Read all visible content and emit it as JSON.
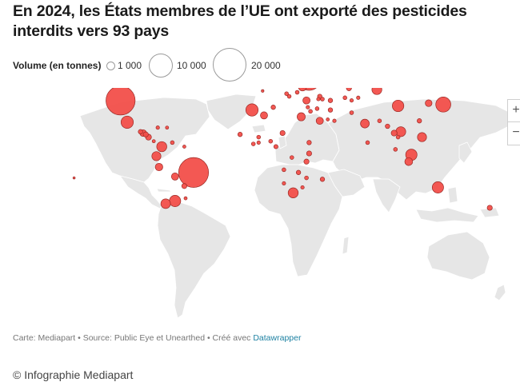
{
  "title": "En 2024, les États membres de l’UE ont exporté des pesticides interdits vers 93 pays",
  "legend": {
    "label": "Volume (en tonnes)",
    "items": [
      {
        "value": "1 000",
        "tonnes": 1000
      },
      {
        "value": "10 000",
        "tonnes": 10000
      },
      {
        "value": "20 000",
        "tonnes": 20000
      }
    ]
  },
  "colors": {
    "bubble_fill": "#f24f4a",
    "bubble_stroke": "#9a2a26",
    "land": "#e6e6e6",
    "borders": "#ffffff",
    "link": "#1d81a2"
  },
  "map_controls": {
    "zoom_in": "+",
    "zoom_out": "−"
  },
  "bubbles": [
    {
      "lon": -105,
      "lat": 39,
      "tonnes": 16500
    },
    {
      "lon": -98,
      "lat": 57,
      "tonnes": 7500
    },
    {
      "lon": -100,
      "lat": 23,
      "tonnes": 3000
    },
    {
      "lon": -88,
      "lat": 15,
      "tonnes": 900
    },
    {
      "lon": -86,
      "lat": 14,
      "tonnes": 500
    },
    {
      "lon": -84,
      "lat": 12,
      "tonnes": 700
    },
    {
      "lon": -90,
      "lat": 16,
      "tonnes": 400
    },
    {
      "lon": -77,
      "lat": 19,
      "tonnes": 250
    },
    {
      "lon": -70,
      "lat": 19,
      "tonnes": 200
    },
    {
      "lon": -80,
      "lat": 9,
      "tonnes": 200
    },
    {
      "lon": -74,
      "lat": 5,
      "tonnes": 2000
    },
    {
      "lon": -66,
      "lat": 8,
      "tonnes": 300
    },
    {
      "lon": -78,
      "lat": -2,
      "tonnes": 1600
    },
    {
      "lon": -76,
      "lat": -10,
      "tonnes": 1100
    },
    {
      "lon": -64,
      "lat": -17,
      "tonnes": 1000
    },
    {
      "lon": -50,
      "lat": -14,
      "tonnes": 17500
    },
    {
      "lon": -57,
      "lat": -24,
      "tonnes": 500
    },
    {
      "lon": -64,
      "lat": -35,
      "tonnes": 2500
    },
    {
      "lon": -71,
      "lat": -37,
      "tonnes": 1800
    },
    {
      "lon": -56,
      "lat": -33,
      "tonnes": 200
    },
    {
      "lon": -57,
      "lat": 5,
      "tonnes": 200
    },
    {
      "lon": -140,
      "lat": -18,
      "tonnes": 100
    },
    {
      "lon": -6,
      "lat": 32,
      "tonnes": 3000
    },
    {
      "lon": 3,
      "lat": 28,
      "tonnes": 1000
    },
    {
      "lon": 10,
      "lat": 34,
      "tonnes": 400
    },
    {
      "lon": 31,
      "lat": 27,
      "tonnes": 1300
    },
    {
      "lon": 17,
      "lat": 15,
      "tonnes": 500
    },
    {
      "lon": -15,
      "lat": 14,
      "tonnes": 400
    },
    {
      "lon": -1,
      "lat": 12,
      "tonnes": 300
    },
    {
      "lon": 8,
      "lat": 9,
      "tonnes": 300
    },
    {
      "lon": -5,
      "lat": 7,
      "tonnes": 300
    },
    {
      "lon": -1,
      "lat": 8,
      "tonnes": 250
    },
    {
      "lon": 12,
      "lat": 5,
      "tonnes": 350
    },
    {
      "lon": 37,
      "lat": 8,
      "tonnes": 400
    },
    {
      "lon": 37,
      "lat": 0,
      "tonnes": 500
    },
    {
      "lon": 35,
      "lat": -6,
      "tonnes": 500
    },
    {
      "lon": 24,
      "lat": -3,
      "tonnes": 300
    },
    {
      "lon": 18,
      "lat": -12,
      "tonnes": 300
    },
    {
      "lon": 29,
      "lat": -14,
      "tonnes": 400
    },
    {
      "lon": 35,
      "lat": -18,
      "tonnes": 300
    },
    {
      "lon": 47,
      "lat": -19,
      "tonnes": 400
    },
    {
      "lon": 25,
      "lat": -29,
      "tonnes": 2000
    },
    {
      "lon": 18,
      "lat": -22,
      "tonnes": 250
    },
    {
      "lon": 32,
      "lat": -25,
      "tonnes": 250
    },
    {
      "lon": -18,
      "lat": 65,
      "tonnes": 200
    },
    {
      "lon": -2,
      "lat": 54,
      "tonnes": 1400
    },
    {
      "lon": 2,
      "lat": 46,
      "tonnes": 150
    },
    {
      "lon": 9,
      "lat": 61,
      "tonnes": 900
    },
    {
      "lon": 37,
      "lat": 55,
      "tonnes": 10500
    },
    {
      "lon": 32,
      "lat": 49,
      "tonnes": 1300
    },
    {
      "lon": 28,
      "lat": 45,
      "tonnes": 300
    },
    {
      "lon": 22,
      "lat": 42,
      "tonnes": 300
    },
    {
      "lon": 20,
      "lat": 44,
      "tonnes": 300
    },
    {
      "lon": 26,
      "lat": 53,
      "tonnes": 300
    },
    {
      "lon": 35,
      "lat": 39,
      "tonnes": 1000
    },
    {
      "lon": 45,
      "lat": 42,
      "tonnes": 400
    },
    {
      "lon": 47,
      "lat": 40,
      "tonnes": 300
    },
    {
      "lon": 44,
      "lat": 40,
      "tonnes": 250
    },
    {
      "lon": 53,
      "lat": 39,
      "tonnes": 400
    },
    {
      "lon": 67,
      "lat": 48,
      "tonnes": 500
    },
    {
      "lon": 64,
      "lat": 41,
      "tonnes": 300
    },
    {
      "lon": 69,
      "lat": 39,
      "tonnes": 250
    },
    {
      "lon": 74,
      "lat": 41,
      "tonnes": 250
    },
    {
      "lon": 53,
      "lat": 32,
      "tonnes": 400
    },
    {
      "lon": 45,
      "lat": 24,
      "tonnes": 1000
    },
    {
      "lon": 43,
      "lat": 33,
      "tonnes": 300
    },
    {
      "lon": 38,
      "lat": 31,
      "tonnes": 300
    },
    {
      "lon": 36,
      "lat": 34,
      "tonnes": 250
    },
    {
      "lon": 56,
      "lat": 24,
      "tonnes": 250
    },
    {
      "lon": 51,
      "lat": 25,
      "tonnes": 200
    },
    {
      "lon": 69,
      "lat": 30,
      "tonnes": 300
    },
    {
      "lon": 79,
      "lat": 22,
      "tonnes": 1500
    },
    {
      "lon": 81,
      "lat": 8,
      "tonnes": 300
    },
    {
      "lon": 90,
      "lat": 24,
      "tonnes": 300
    },
    {
      "lon": 88,
      "lat": 47,
      "tonnes": 1900
    },
    {
      "lon": 104,
      "lat": 35,
      "tonnes": 2600
    },
    {
      "lon": 127,
      "lat": 37,
      "tonnes": 900
    },
    {
      "lon": 138,
      "lat": 36,
      "tonnes": 4400
    },
    {
      "lon": 96,
      "lat": 20,
      "tonnes": 400
    },
    {
      "lon": 101,
      "lat": 15,
      "tonnes": 700
    },
    {
      "lon": 104,
      "lat": 12,
      "tonnes": 300
    },
    {
      "lon": 106,
      "lat": 16,
      "tonnes": 1900
    },
    {
      "lon": 122,
      "lat": 12,
      "tonnes": 1600
    },
    {
      "lon": 120,
      "lat": 24,
      "tonnes": 400
    },
    {
      "lon": 102,
      "lat": 3,
      "tonnes": 300
    },
    {
      "lon": 114,
      "lat": -1,
      "tonnes": 2500
    },
    {
      "lon": 112,
      "lat": -6,
      "tonnes": 1200
    },
    {
      "lon": 134,
      "lat": -25,
      "tonnes": 2500
    },
    {
      "lon": 173,
      "lat": -40,
      "tonnes": 500
    }
  ]
}
